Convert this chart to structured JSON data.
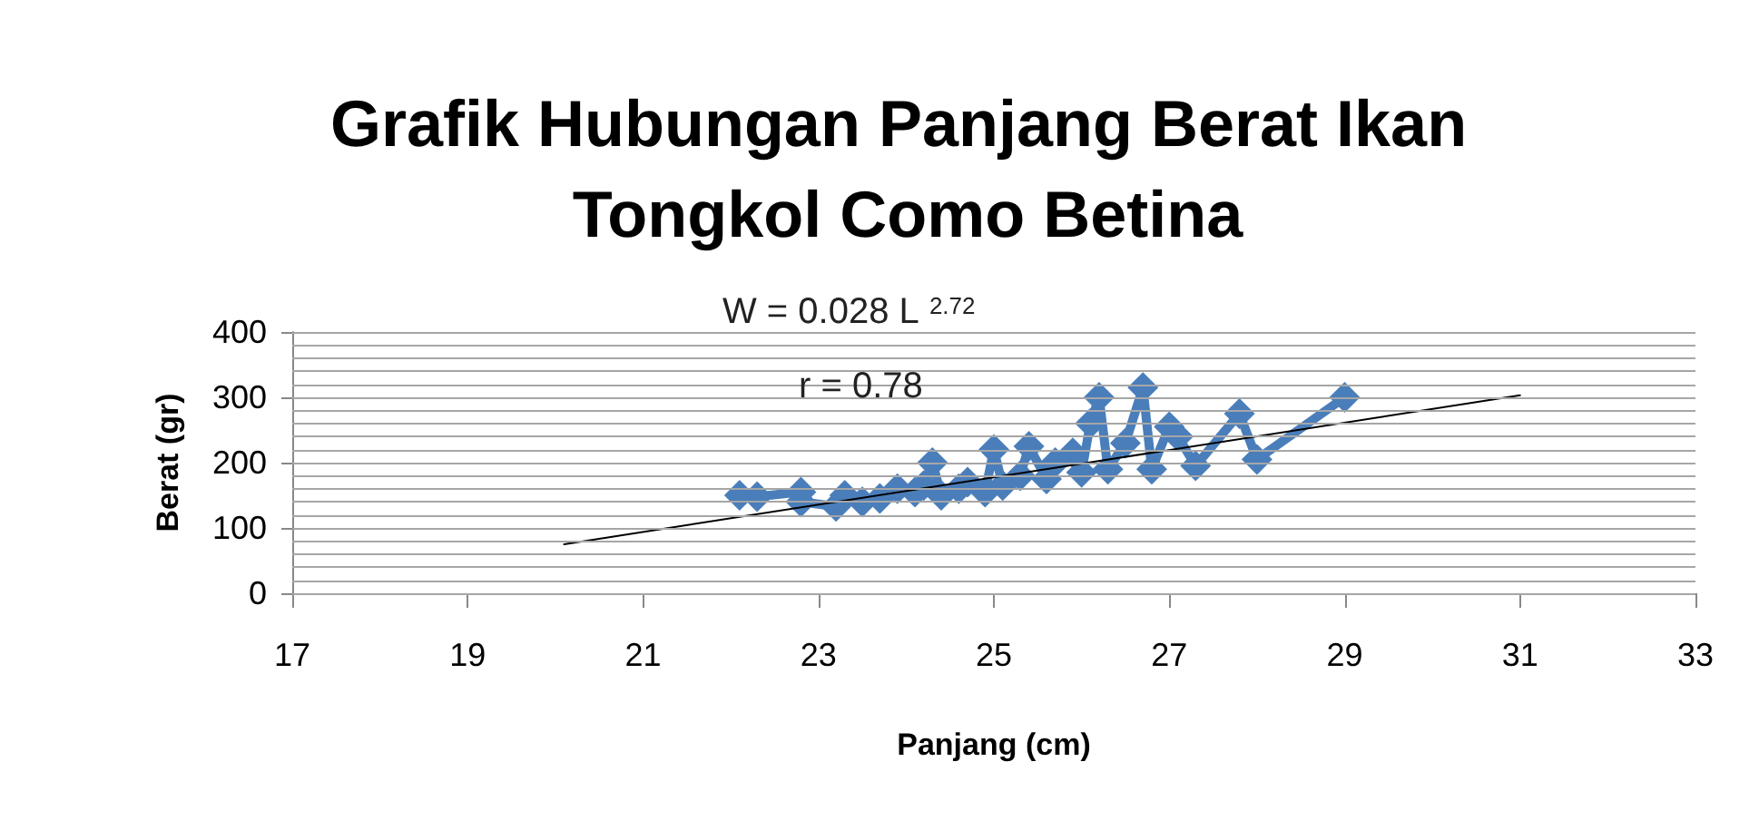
{
  "chart_data": {
    "type": "line",
    "title": "Grafik Hubungan Panjang Berat Ikan Tongkol Como Betina",
    "xlabel": "Panjang (cm)",
    "ylabel": "Berat (gr)",
    "annotations": [
      "W = 0.028 L $^{2.72}$",
      "r = 0.78"
    ],
    "series": [
      {
        "color": "#4a7ebb",
        "marker": "diamond",
        "x": [
          22.1,
          22.3,
          22.8,
          22.8,
          23.2,
          23.3,
          23.5,
          23.7,
          23.9,
          24.1,
          24.2,
          24.3,
          24.4,
          24.6,
          24.7,
          24.9,
          25.0,
          25.1,
          25.3,
          25.4,
          25.6,
          25.7,
          25.9,
          26.0,
          26.1,
          26.2,
          26.3,
          26.5,
          26.7,
          26.8,
          27.0,
          27.1,
          27.3,
          27.8,
          28.0,
          29.0
        ],
        "values": [
          150,
          148,
          155,
          140,
          133,
          150,
          140,
          145,
          160,
          155,
          165,
          200,
          150,
          160,
          170,
          155,
          220,
          165,
          180,
          225,
          175,
          200,
          215,
          185,
          260,
          300,
          190,
          230,
          315,
          190,
          255,
          240,
          195,
          275,
          205,
          300
        ]
      },
      {
        "type": "line",
        "color": "#000000",
        "marker": "none",
        "x": [
          20.1,
          31.0
        ],
        "values": [
          75,
          303
        ]
      }
    ],
    "xlim": [
      17,
      33
    ],
    "xticks": [
      17,
      19,
      21,
      23,
      25,
      27,
      29,
      31,
      33
    ],
    "ylim": [
      0,
      400
    ],
    "yticks": [
      0,
      {
        "value": 20,
        "label": null
      },
      {
        "value": 40,
        "label": null
      },
      {
        "value": 60,
        "label": null
      },
      {
        "value": 80,
        "label": null
      },
      100,
      {
        "value": 120,
        "label": null
      },
      {
        "value": 140,
        "label": null
      },
      {
        "value": 160,
        "label": null
      },
      {
        "value": 180,
        "label": null
      },
      200,
      {
        "value": 220,
        "label": null
      },
      {
        "value": 240,
        "label": null
      },
      {
        "value": 260,
        "label": null
      },
      {
        "value": 280,
        "label": null
      },
      300,
      {
        "value": 320,
        "label": null
      },
      {
        "value": 340,
        "label": null
      },
      {
        "value": 360,
        "label": null
      },
      {
        "value": 380,
        "label": null
      },
      400
    ],
    "grid": "y"
  }
}
